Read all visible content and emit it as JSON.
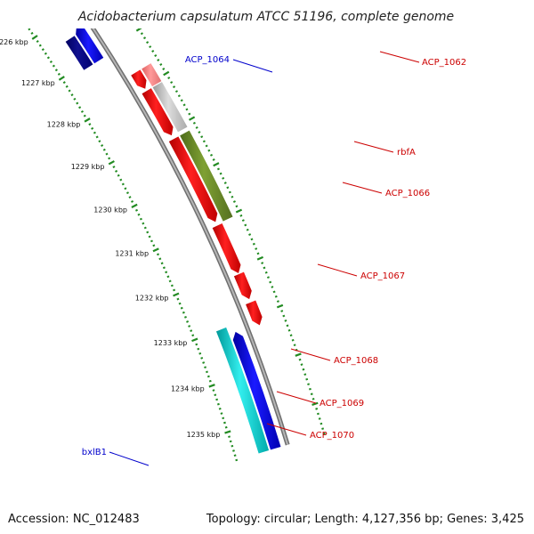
{
  "title": "Acidobacterium capsulatum ATCC 51196, complete genome",
  "footer": {
    "accession": "Accession: NC_012483",
    "summary": "Topology: circular; Length: 4,127,356 bp; Genes: 3,425"
  },
  "colors": {
    "backbone": "#888888",
    "tick": "#228B22",
    "label_forward": "#0000CC",
    "label_reverse": "#CC0000",
    "connector_forward": "#0000CC",
    "connector_reverse": "#CC0000"
  },
  "ticks": [
    {
      "label": "1226 kbp"
    },
    {
      "label": "1227 kbp"
    },
    {
      "label": "1228 kbp"
    },
    {
      "label": "1229 kbp"
    },
    {
      "label": "1230 kbp"
    },
    {
      "label": "1231 kbp"
    },
    {
      "label": "1232 kbp"
    },
    {
      "label": "1233 kbp"
    },
    {
      "label": "1234 kbp"
    },
    {
      "label": "1235 kbp"
    }
  ],
  "genes": [
    {
      "name": "ACP_1064",
      "strand": "forward",
      "color": "#0000CC",
      "labeled": true
    },
    {
      "name": "ACP_1062",
      "strand": "reverse",
      "color": "#FF0000",
      "labeled": true
    },
    {
      "name": "rbfA",
      "strand": "reverse",
      "color": "#FF0000",
      "labeled": true
    },
    {
      "name": "ACP_1066",
      "strand": "reverse",
      "color": "#FF0000",
      "labeled": true
    },
    {
      "name": "ACP_1067",
      "strand": "reverse",
      "color": "#FF0000",
      "labeled": true
    },
    {
      "name": "ACP_1068",
      "strand": "reverse",
      "color": "#FF0000",
      "labeled": true
    },
    {
      "name": "ACP_1069",
      "strand": "reverse",
      "color": "#FF0000",
      "labeled": true
    },
    {
      "name": "ACP_1070",
      "strand": "reverse",
      "color": "#FF0000",
      "labeled": true
    },
    {
      "name": "bxlB1",
      "strand": "forward",
      "color": "#0000CC",
      "labeled": true
    }
  ]
}
